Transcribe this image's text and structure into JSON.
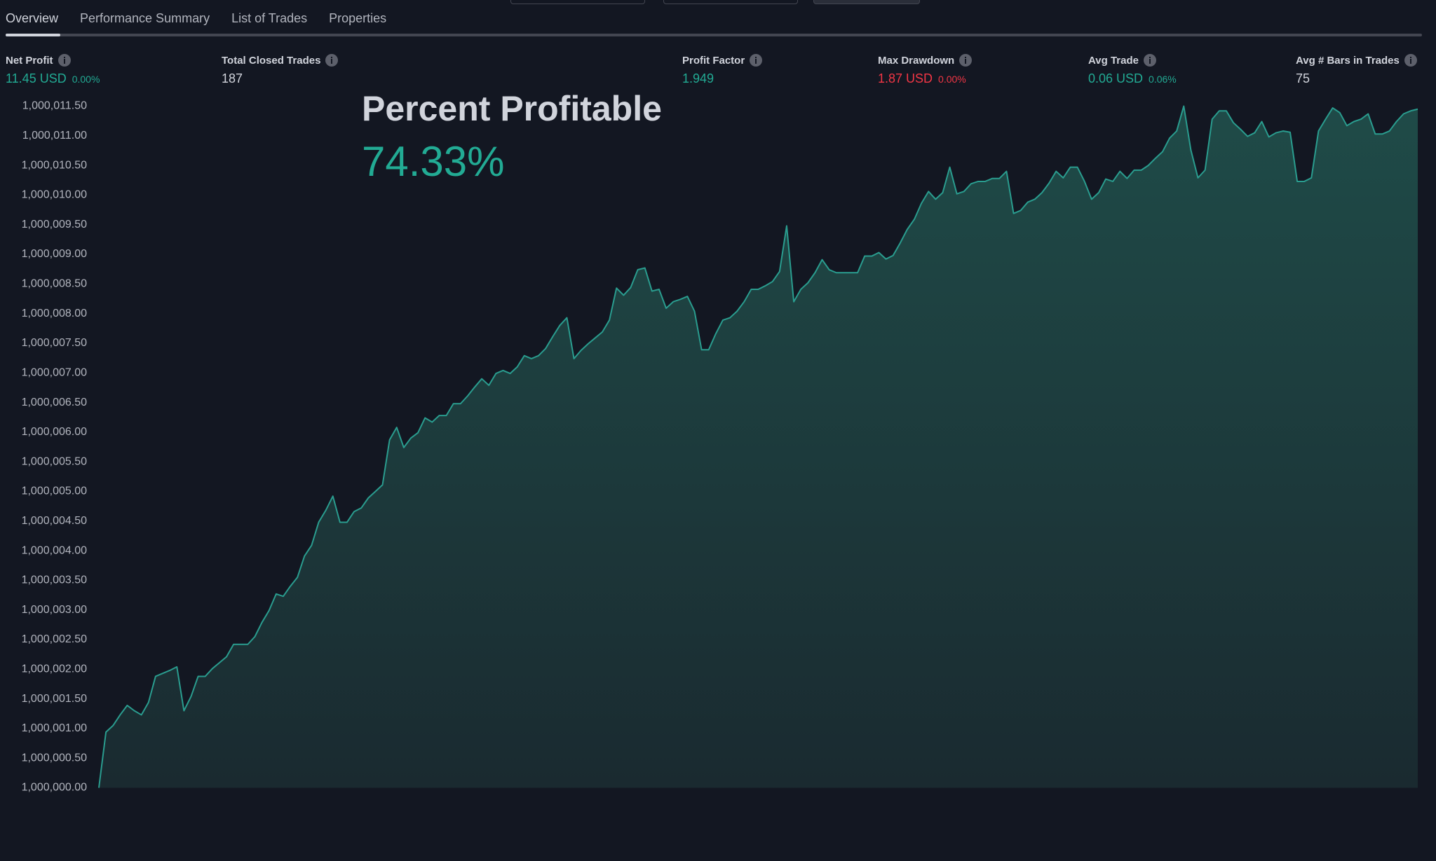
{
  "tabs": [
    "Overview",
    "Performance Summary",
    "List of Trades",
    "Properties"
  ],
  "metrics": [
    {
      "label": "Net Profit",
      "value": "11.45 USD",
      "percent": "0.00%"
    },
    {
      "label": "Total Closed Trades",
      "value": "187"
    },
    {
      "label": "Profit Factor",
      "value": "1.949"
    },
    {
      "label": "Max Drawdown",
      "value": "1.87 USD",
      "percent": "0.00%"
    },
    {
      "label": "Avg Trade",
      "value": "0.06 USD",
      "percent": "0.06%"
    },
    {
      "label": "Avg # Bars in Trades",
      "value": "75"
    }
  ],
  "overlay": {
    "title": "Percent Profitable",
    "value": "74.33%"
  },
  "chart_data": {
    "type": "area",
    "color": "#2a9d8f",
    "ylim": [
      1000000,
      1000011.5
    ],
    "yticks": [
      {
        "value": 1000000,
        "label": "1,000,000.00"
      },
      {
        "value": 1000000.5,
        "label": "1,000,000.50"
      },
      {
        "value": 1000001,
        "label": "1,000,001.00"
      },
      {
        "value": 1000001.5,
        "label": "1,000,001.50"
      },
      {
        "value": 1000002,
        "label": "1,000,002.00"
      },
      {
        "value": 1000002.5,
        "label": "1,000,002.50"
      },
      {
        "value": 1000003,
        "label": "1,000,003.00"
      },
      {
        "value": 1000003.5,
        "label": "1,000,003.50"
      },
      {
        "value": 1000004,
        "label": "1,000,004.00"
      },
      {
        "value": 1000004.5,
        "label": "1,000,004.50"
      },
      {
        "value": 1000005,
        "label": "1,000,005.00"
      },
      {
        "value": 1000005.5,
        "label": "1,000,005.50"
      },
      {
        "value": 1000006,
        "label": "1,000,006.00"
      },
      {
        "value": 1000006.5,
        "label": "1,000,006.50"
      },
      {
        "value": 1000007,
        "label": "1,000,007.00"
      },
      {
        "value": 1000007.5,
        "label": "1,000,007.50"
      },
      {
        "value": 1000008,
        "label": "1,000,008.00"
      },
      {
        "value": 1000008.5,
        "label": "1,000,008.50"
      },
      {
        "value": 1000009,
        "label": "1,000,009.00"
      },
      {
        "value": 1000009.5,
        "label": "1,000,009.50"
      },
      {
        "value": 1000010,
        "label": "1,000,010.00"
      },
      {
        "value": 1000010.5,
        "label": "1,000,010.50"
      },
      {
        "value": 1000011,
        "label": "1,000,011.00"
      },
      {
        "value": 1000011.5,
        "label": "1,000,011.50"
      }
    ],
    "values": [
      1000000,
      1000000.94,
      1000001.05,
      1000001.23,
      1000001.39,
      1000001.3,
      1000001.23,
      1000001.44,
      1000001.88,
      1000001.93,
      1000001.98,
      1000002.04,
      1000001.3,
      1000001.54,
      1000001.88,
      1000001.88,
      1000002.01,
      1000002.11,
      1000002.21,
      1000002.42,
      1000002.42,
      1000002.42,
      1000002.55,
      1000002.79,
      1000002.99,
      1000003.27,
      1000003.23,
      1000003.4,
      1000003.55,
      1000003.91,
      1000004.09,
      1000004.48,
      1000004.68,
      1000004.92,
      1000004.48,
      1000004.48,
      1000004.66,
      1000004.72,
      1000004.89,
      1000005,
      1000005.11,
      1000005.87,
      1000006.08,
      1000005.74,
      1000005.9,
      1000005.99,
      1000006.24,
      1000006.17,
      1000006.28,
      1000006.28,
      1000006.48,
      1000006.48,
      1000006.61,
      1000006.76,
      1000006.9,
      1000006.79,
      1000006.99,
      1000007.04,
      1000006.99,
      1000007.1,
      1000007.29,
      1000007.24,
      1000007.29,
      1000007.41,
      1000007.61,
      1000007.8,
      1000007.93,
      1000007.24,
      1000007.38,
      1000007.49,
      1000007.59,
      1000007.69,
      1000007.89,
      1000008.43,
      1000008.31,
      1000008.44,
      1000008.74,
      1000008.77,
      1000008.38,
      1000008.41,
      1000008.09,
      1000008.2,
      1000008.24,
      1000008.29,
      1000008.04,
      1000007.39,
      1000007.39,
      1000007.66,
      1000007.89,
      1000007.93,
      1000008.04,
      1000008.2,
      1000008.41,
      1000008.41,
      1000008.47,
      1000008.54,
      1000008.71,
      1000009.48,
      1000008.2,
      1000008.41,
      1000008.52,
      1000008.69,
      1000008.91,
      1000008.74,
      1000008.69,
      1000008.69,
      1000008.69,
      1000008.69,
      1000008.97,
      1000008.97,
      1000009.03,
      1000008.92,
      1000008.98,
      1000009.19,
      1000009.42,
      1000009.59,
      1000009.86,
      1000010.06,
      1000009.93,
      1000010.04,
      1000010.47,
      1000010.02,
      1000010.06,
      1000010.19,
      1000010.23,
      1000010.23,
      1000010.28,
      1000010.28,
      1000010.4,
      1000009.69,
      1000009.74,
      1000009.88,
      1000009.93,
      1000010.04,
      1000010.2,
      1000010.4,
      1000010.29,
      1000010.47,
      1000010.47,
      1000010.23,
      1000009.93,
      1000010.04,
      1000010.27,
      1000010.23,
      1000010.4,
      1000010.28,
      1000010.42,
      1000010.42,
      1000010.5,
      1000010.62,
      1000010.73,
      1000010.96,
      1000011.08,
      1000011.5,
      1000010.76,
      1000010.29,
      1000010.42,
      1000011.28,
      1000011.42,
      1000011.42,
      1000011.22,
      1000011.11,
      1000010.99,
      1000011.05,
      1000011.24,
      1000010.98,
      1000011.05,
      1000011.08,
      1000011.06,
      1000010.23,
      1000010.23,
      1000010.29,
      1000011.08,
      1000011.28,
      1000011.47,
      1000011.39,
      1000011.17,
      1000011.24,
      1000011.28,
      1000011.37,
      1000011.03,
      1000011.03,
      1000011.08,
      1000011.24,
      1000011.37,
      1000011.42,
      1000011.45
    ]
  }
}
